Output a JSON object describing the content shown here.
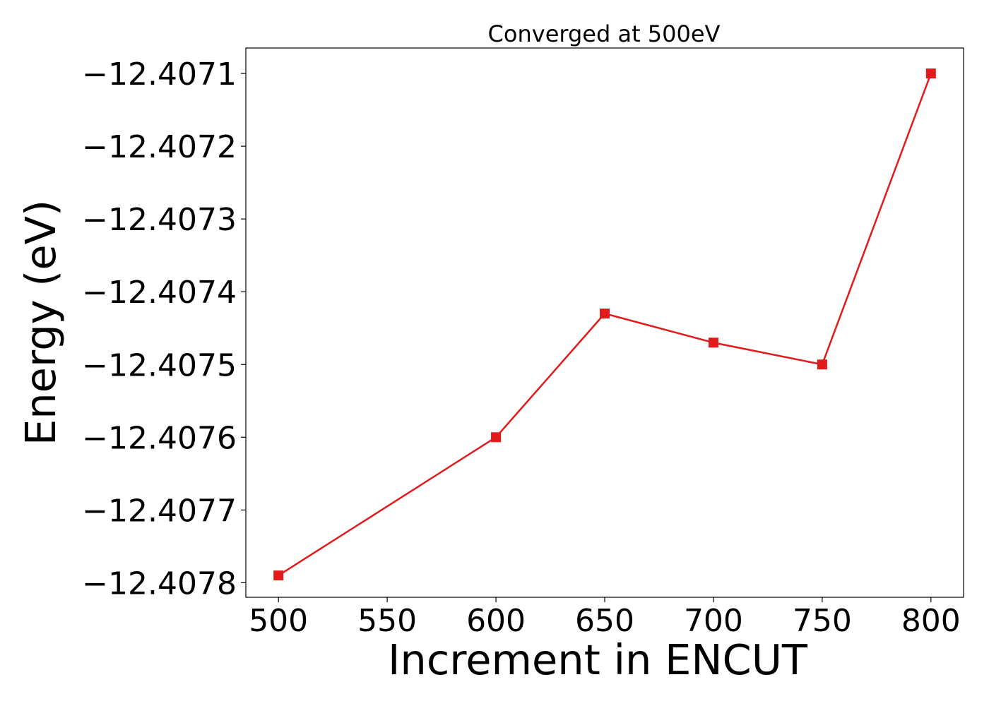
{
  "chart_data": {
    "type": "line",
    "title": "Converged at 500eV",
    "xlabel": "Increment in ENCUT",
    "ylabel": "Energy (eV)",
    "x": [
      500,
      600,
      650,
      700,
      750,
      800
    ],
    "series": [
      {
        "values": [
          -12.40779,
          -12.4076,
          -12.40743,
          -12.40747,
          -12.4075,
          -12.4071
        ],
        "color": "#e31a1c",
        "marker": "square"
      }
    ],
    "xlim": [
      485,
      815
    ],
    "ylim": [
      -12.40782,
      -12.407065
    ],
    "xticks": [
      500,
      550,
      600,
      650,
      700,
      750,
      800
    ],
    "xtick_labels": [
      "500",
      "550",
      "600",
      "650",
      "700",
      "750",
      "800"
    ],
    "yticks": [
      -12.4078,
      -12.4077,
      -12.4076,
      -12.4075,
      -12.4074,
      -12.4073,
      -12.4072,
      -12.4071
    ],
    "ytick_labels": [
      "−12.4078",
      "−12.4077",
      "−12.4076",
      "−12.4075",
      "−12.4074",
      "−12.4073",
      "−12.4072",
      "−12.4071"
    ],
    "grid": false,
    "legend": false
  }
}
